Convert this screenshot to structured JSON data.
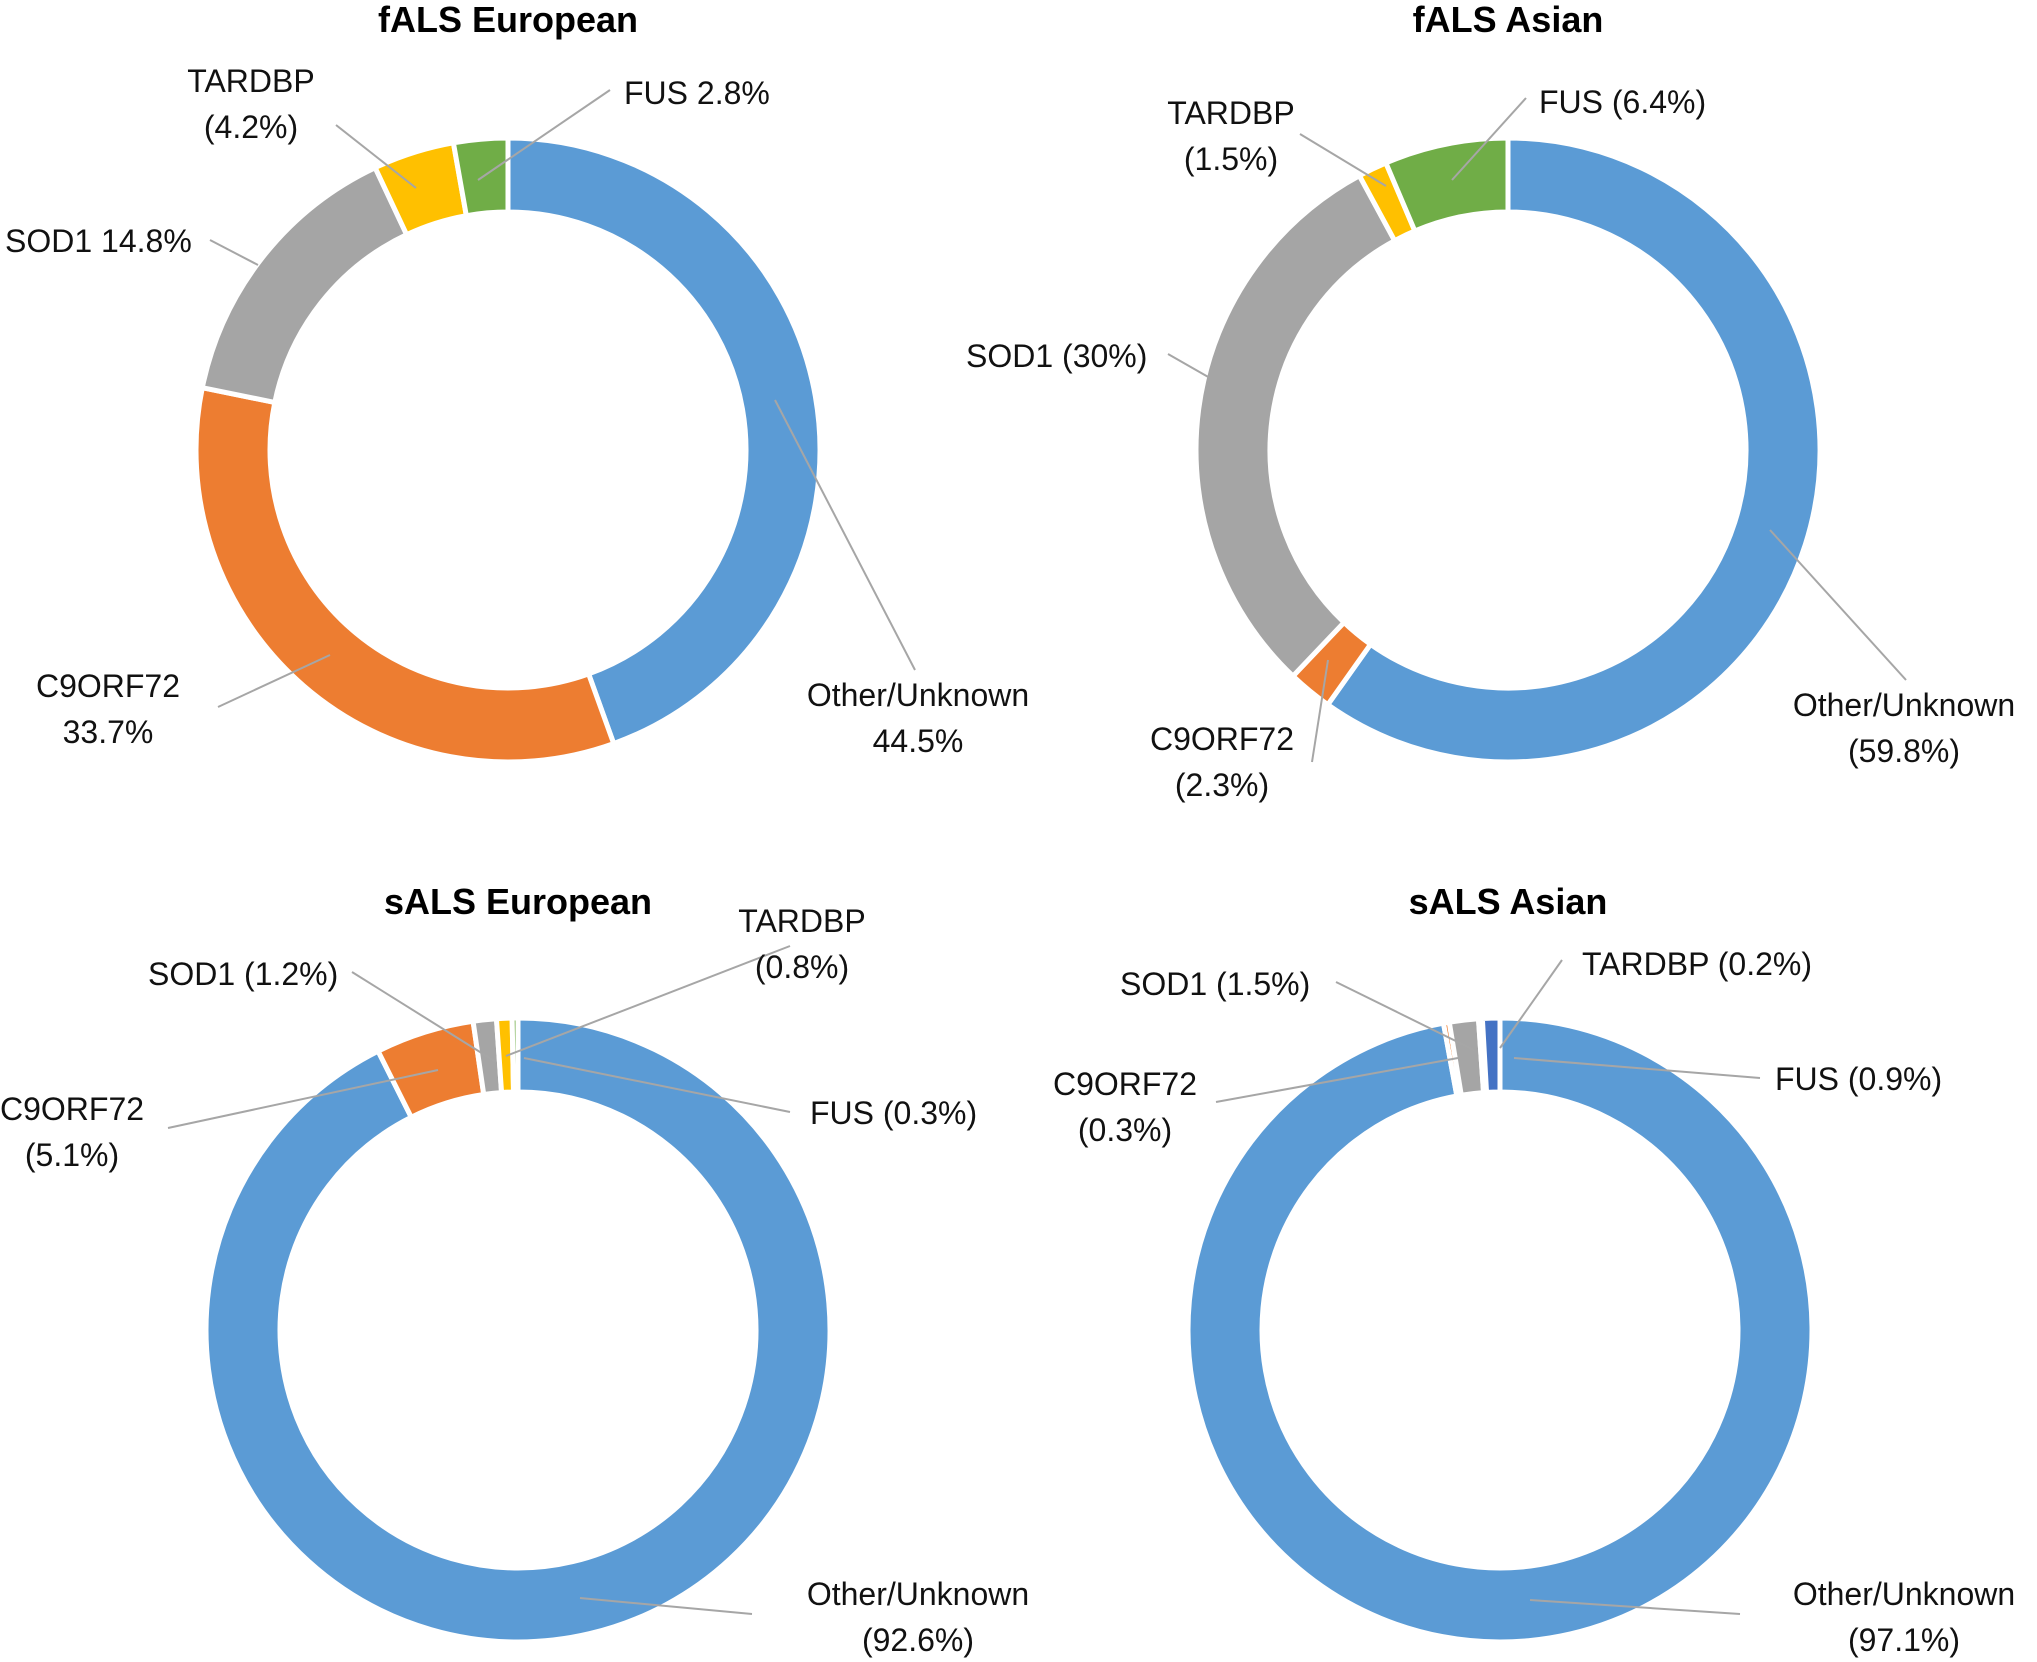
{
  "chart_data": [
    {
      "type": "pie",
      "title": "fALS European",
      "slices": [
        {
          "name": "Other/Unknown",
          "value": 44.5,
          "label_lines": [
            "Other/Unknown",
            "44.5%"
          ],
          "color": "#5b9bd5"
        },
        {
          "name": "C9ORF72",
          "value": 33.7,
          "label_lines": [
            "C9ORF72",
            "33.7%"
          ],
          "color": "#ed7d31"
        },
        {
          "name": "SOD1",
          "value": 14.8,
          "label_lines": [
            "SOD1 14.8%"
          ],
          "color": "#a5a5a5"
        },
        {
          "name": "TARDBP",
          "value": 4.2,
          "label_lines": [
            "TARDBP",
            "(4.2%)"
          ],
          "color": "#ffc000"
        },
        {
          "name": "FUS",
          "value": 2.8,
          "label_lines": [
            "FUS 2.8%"
          ],
          "color": "#70ad47"
        }
      ]
    },
    {
      "type": "pie",
      "title": "fALS Asian",
      "slices": [
        {
          "name": "Other/Unknown",
          "value": 59.8,
          "label_lines": [
            "Other/Unknown",
            "(59.8%)"
          ],
          "color": "#5b9bd5"
        },
        {
          "name": "C9ORF72",
          "value": 2.3,
          "label_lines": [
            "C9ORF72",
            "(2.3%)"
          ],
          "color": "#ed7d31"
        },
        {
          "name": "SOD1",
          "value": 30,
          "label_lines": [
            "SOD1 (30%)"
          ],
          "color": "#a5a5a5"
        },
        {
          "name": "TARDBP",
          "value": 1.5,
          "label_lines": [
            "TARDBP",
            "(1.5%)"
          ],
          "color": "#ffc000"
        },
        {
          "name": "FUS",
          "value": 6.4,
          "label_lines": [
            "FUS (6.4%)"
          ],
          "color": "#70ad47"
        }
      ]
    },
    {
      "type": "pie",
      "title": "sALS European",
      "slices": [
        {
          "name": "Other/Unknown",
          "value": 92.6,
          "label_lines": [
            "Other/Unknown",
            "(92.6%)"
          ],
          "color": "#5b9bd5"
        },
        {
          "name": "C9ORF72",
          "value": 5.1,
          "label_lines": [
            "C9ORF72",
            "(5.1%)"
          ],
          "color": "#ed7d31"
        },
        {
          "name": "SOD1",
          "value": 1.2,
          "label_lines": [
            "SOD1 (1.2%)"
          ],
          "color": "#a5a5a5"
        },
        {
          "name": "TARDBP",
          "value": 0.8,
          "label_lines": [
            "TARDBP",
            "(0.8%)"
          ],
          "color": "#ffc000"
        },
        {
          "name": "FUS",
          "value": 0.3,
          "label_lines": [
            "FUS (0.3%)"
          ],
          "color": "#70ad47"
        }
      ]
    },
    {
      "type": "pie",
      "title": "sALS Asian",
      "slices": [
        {
          "name": "Other/Unknown",
          "value": 97.1,
          "label_lines": [
            "Other/Unknown",
            "(97.1%)"
          ],
          "color": "#5b9bd5"
        },
        {
          "name": "C9ORF72",
          "value": 0.3,
          "label_lines": [
            "C9ORF72",
            "(0.3%)"
          ],
          "color": "#ed7d31"
        },
        {
          "name": "SOD1",
          "value": 1.5,
          "label_lines": [
            "SOD1 (1.5%)"
          ],
          "color": "#a5a5a5"
        },
        {
          "name": "TARDBP",
          "value": 0.2,
          "label_lines": [
            "TARDBP (0.2%)"
          ],
          "color": "#ffc000"
        },
        {
          "name": "FUS",
          "value": 0.9,
          "label_lines": [
            "FUS (0.9%)"
          ],
          "color": "#4472c4"
        }
      ]
    }
  ]
}
